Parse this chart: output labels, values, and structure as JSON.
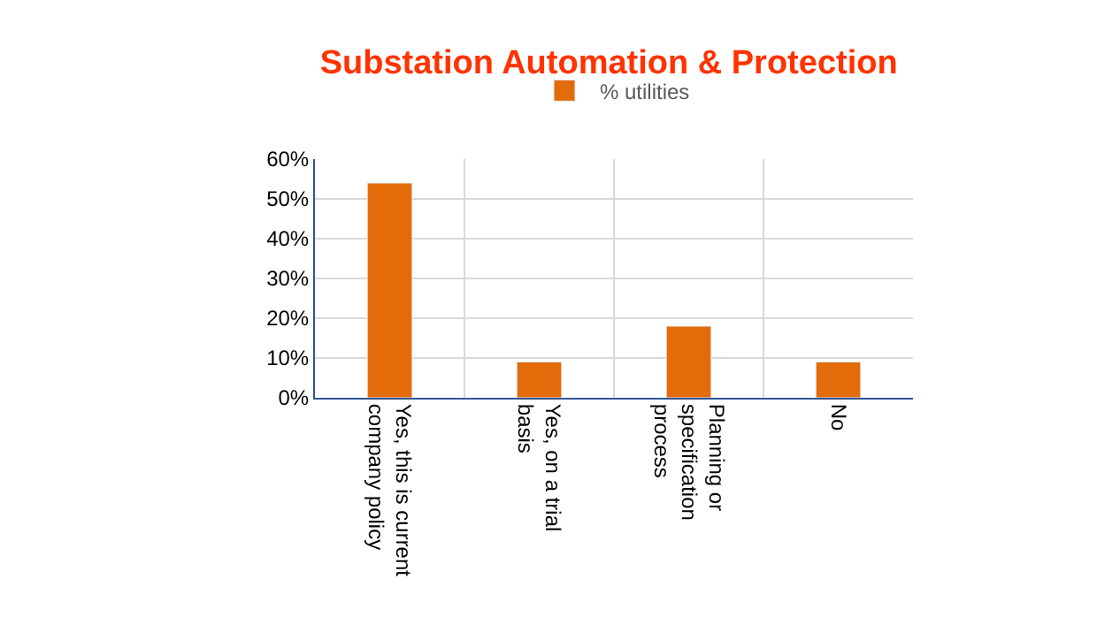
{
  "chart_data": {
    "type": "bar",
    "title": "Substation Automation & Protection",
    "categories": [
      "Yes, this is current company policy",
      "Yes, on a trial basis",
      "Planning or specification process",
      "No"
    ],
    "series": [
      {
        "name": "% utilities",
        "color": "#e36c0a",
        "values": [
          54,
          9,
          18,
          9
        ]
      }
    ],
    "ylim": [
      0,
      60
    ],
    "yticks": [
      {
        "value": 0,
        "label": "0%"
      },
      {
        "value": 10,
        "label": "10%"
      },
      {
        "value": 20,
        "label": "20%"
      },
      {
        "value": 30,
        "label": "30%"
      },
      {
        "value": 40,
        "label": "40%"
      },
      {
        "value": 50,
        "label": "50%"
      },
      {
        "value": 60,
        "label": "60%"
      }
    ],
    "grid": true,
    "legend": "top"
  }
}
